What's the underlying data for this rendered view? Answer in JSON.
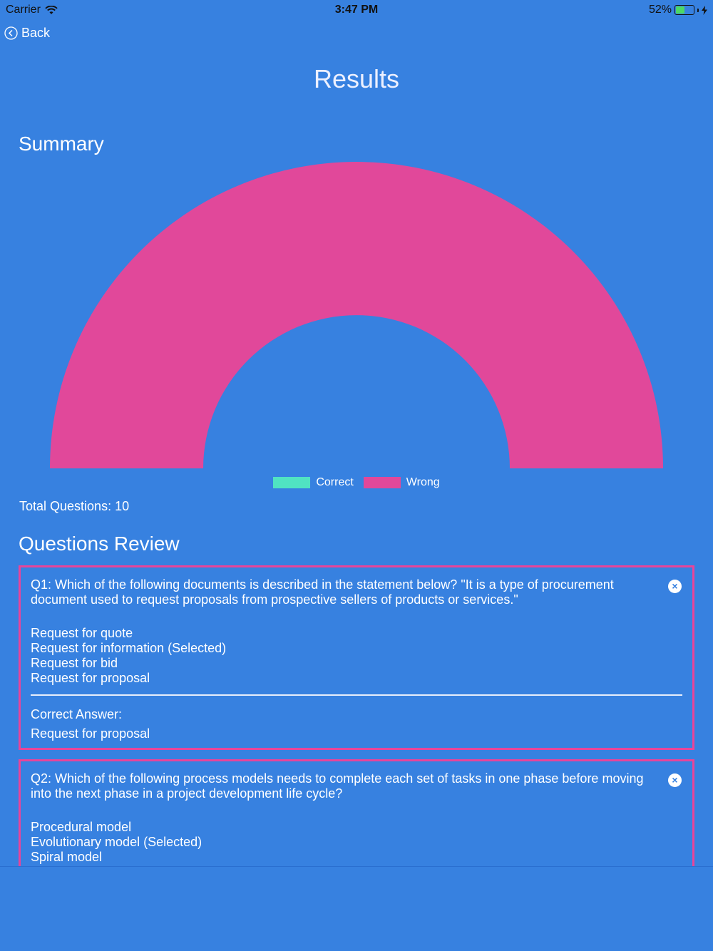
{
  "status_bar": {
    "carrier": "Carrier",
    "time": "3:47 PM",
    "battery": "52%"
  },
  "nav": {
    "back_label": "Back"
  },
  "page_title": "Results",
  "summary": {
    "heading": "Summary",
    "total_questions": "Total Questions: 10"
  },
  "chart_data": {
    "type": "pie",
    "categories": [
      "Correct",
      "Wrong"
    ],
    "values": [
      0,
      10
    ],
    "colors": [
      "#50e3c2",
      "#e1489a"
    ],
    "legend_placement": "bottom"
  },
  "review": {
    "heading": "Questions Review",
    "questions": [
      {
        "text": "Q1: Which of the following documents is described in the statement below? \"It is a type of procurement document used to request proposals from prospective sellers of products or services.\"",
        "options": [
          "Request for quote",
          "Request for information (Selected)",
          "Request for bid",
          "Request for proposal"
        ],
        "correct_label": "Correct Answer:",
        "correct_answer": "Request for proposal"
      },
      {
        "text": "Q2: Which of the following process models needs to complete each set of tasks in one phase before moving into the next phase in a project development life cycle?",
        "options": [
          "Procedural model",
          "Evolutionary model (Selected)",
          "Spiral model"
        ]
      }
    ]
  },
  "icons": {
    "back": "chevron-left-circle-icon",
    "wifi": "wifi-icon",
    "battery": "battery-icon",
    "close": "close-circle-icon"
  }
}
